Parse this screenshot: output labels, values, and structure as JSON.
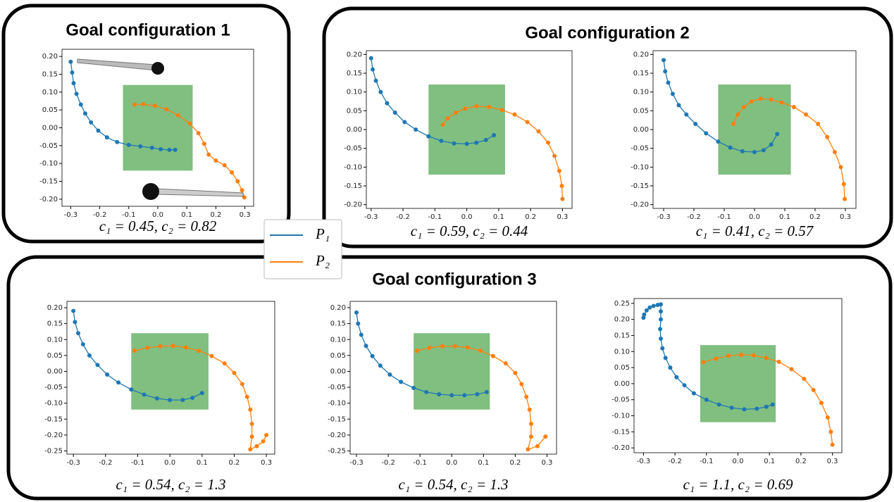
{
  "groups": [
    "Goal configuration 1",
    "Goal configuration 2",
    "Goal configuration 3"
  ],
  "legend": [
    {
      "name": "P₁",
      "color": "#1f77b4"
    },
    {
      "name": "P₂",
      "color": "#ff7f0e"
    }
  ],
  "chart_data": [
    {
      "type": "line",
      "caption": "c₁ = 0.45, c₂ = 0.82",
      "xlim": [
        -0.33,
        0.33
      ],
      "ylim": [
        -0.22,
        0.22
      ],
      "xticks": [
        -0.3,
        -0.2,
        -0.1,
        {
          "value": 0,
          "label": "0.0"
        },
        0.1,
        0.2,
        0.3
      ],
      "yticks": [
        {
          "value": 0.2,
          "label": "0.20"
        },
        0.15,
        {
          "value": 0.1,
          "label": "0.10"
        },
        0.05,
        {
          "value": 0,
          "label": "0.00"
        },
        -0.05,
        {
          "value": -0.1,
          "label": "-0.10"
        },
        -0.15,
        {
          "value": -0.2,
          "label": "-0.20"
        }
      ],
      "goal_region": {
        "x": [
          -0.12,
          0.12
        ],
        "y": [
          -0.12,
          0.12
        ],
        "color": "#80bf80"
      },
      "series": [
        {
          "color": "#1f77b4",
          "x": [
            -0.3,
            -0.295,
            -0.29,
            -0.28,
            -0.265,
            -0.25,
            -0.23,
            -0.205,
            -0.175,
            -0.14,
            -0.1,
            -0.06,
            -0.02,
            0.01,
            0.04,
            0.06
          ],
          "values": [
            0.185,
            0.155,
            0.125,
            0.095,
            0.065,
            0.04,
            0.015,
            -0.008,
            -0.027,
            -0.04,
            -0.048,
            -0.052,
            -0.056,
            -0.06,
            -0.062,
            -0.062
          ]
        },
        {
          "color": "#ff7f0e",
          "x": [
            -0.08,
            -0.05,
            -0.01,
            0.03,
            0.07,
            0.11,
            0.14,
            0.16,
            0.175,
            0.2,
            0.23,
            0.255,
            0.275,
            0.29,
            0.298
          ],
          "values": [
            0.065,
            0.066,
            0.062,
            0.052,
            0.035,
            0.012,
            -0.015,
            -0.045,
            -0.075,
            -0.092,
            -0.105,
            -0.125,
            -0.15,
            -0.175,
            -0.195
          ]
        }
      ]
    },
    {
      "type": "line",
      "caption": "c₁ = 0.59, c₂ = 0.44",
      "xlim": [
        -0.315,
        0.33
      ],
      "ylim": [
        -0.21,
        0.21
      ],
      "xticks": [
        -0.3,
        -0.2,
        -0.1,
        {
          "value": 0,
          "label": "0.0"
        },
        0.1,
        0.2,
        0.3
      ],
      "yticks": [
        {
          "value": 0.2,
          "label": "0.20"
        },
        0.15,
        {
          "value": 0.1,
          "label": "0.10"
        },
        0.05,
        {
          "value": 0,
          "label": "0.00"
        },
        -0.05,
        {
          "value": -0.1,
          "label": "-0.10"
        },
        -0.15,
        {
          "value": -0.2,
          "label": "-0.20"
        }
      ],
      "goal_region": {
        "x": [
          -0.12,
          0.12
        ],
        "y": [
          -0.12,
          0.12
        ],
        "color": "#80bf80"
      },
      "series": [
        {
          "color": "#1f77b4",
          "x": [
            -0.3,
            -0.295,
            -0.285,
            -0.27,
            -0.25,
            -0.225,
            -0.195,
            -0.16,
            -0.12,
            -0.08,
            -0.04,
            0,
            0.03,
            0.06,
            0.085
          ],
          "values": [
            0.19,
            0.16,
            0.13,
            0.1,
            0.07,
            0.045,
            0.02,
            0,
            -0.018,
            -0.03,
            -0.037,
            -0.038,
            -0.035,
            -0.028,
            -0.015
          ]
        },
        {
          "color": "#ff7f0e",
          "x": [
            -0.075,
            -0.06,
            -0.035,
            -0.005,
            0.03,
            0.07,
            0.11,
            0.15,
            0.19,
            0.225,
            0.255,
            0.275,
            0.29,
            0.298,
            0.3
          ],
          "values": [
            0.013,
            0.03,
            0.045,
            0.056,
            0.062,
            0.06,
            0.052,
            0.04,
            0.02,
            -0.005,
            -0.035,
            -0.07,
            -0.11,
            -0.15,
            -0.185
          ]
        }
      ]
    },
    {
      "type": "line",
      "caption": "c₁ = 0.41, c₂ = 0.57",
      "xlim": [
        -0.335,
        0.335
      ],
      "ylim": [
        -0.21,
        0.21
      ],
      "xticks": [
        -0.3,
        -0.2,
        -0.1,
        {
          "value": 0,
          "label": "0.0"
        },
        0.1,
        0.2,
        0.3
      ],
      "yticks": [
        {
          "value": 0.2,
          "label": "0.20"
        },
        0.15,
        {
          "value": 0.1,
          "label": "0.10"
        },
        0.05,
        {
          "value": 0,
          "label": "0.00"
        },
        -0.05,
        {
          "value": -0.1,
          "label": "-0.10"
        },
        -0.15,
        {
          "value": -0.2,
          "label": "-0.20"
        }
      ],
      "goal_region": {
        "x": [
          -0.12,
          0.12
        ],
        "y": [
          -0.12,
          0.12
        ],
        "color": "#80bf80"
      },
      "series": [
        {
          "color": "#1f77b4",
          "x": [
            -0.3,
            -0.295,
            -0.285,
            -0.27,
            -0.25,
            -0.225,
            -0.195,
            -0.16,
            -0.12,
            -0.08,
            -0.04,
            0,
            0.03,
            0.055,
            0.075
          ],
          "values": [
            0.185,
            0.155,
            0.125,
            0.095,
            0.065,
            0.04,
            0.015,
            -0.01,
            -0.032,
            -0.048,
            -0.058,
            -0.06,
            -0.055,
            -0.04,
            -0.012
          ]
        },
        {
          "color": "#ff7f0e",
          "x": [
            -0.07,
            -0.055,
            -0.035,
            -0.01,
            0.02,
            0.055,
            0.09,
            0.13,
            0.17,
            0.21,
            0.24,
            0.265,
            0.285,
            0.295,
            0.298
          ],
          "values": [
            0.015,
            0.04,
            0.06,
            0.075,
            0.082,
            0.08,
            0.072,
            0.06,
            0.04,
            0.015,
            -0.02,
            -0.06,
            -0.1,
            -0.145,
            -0.185
          ]
        }
      ]
    },
    {
      "type": "line",
      "caption": "c₁ = 0.54, c₂ = 1.3",
      "xlim": [
        -0.32,
        0.326
      ],
      "ylim": [
        -0.26,
        0.22
      ],
      "xticks": [
        -0.3,
        -0.2,
        -0.1,
        {
          "value": 0,
          "label": "0.0"
        },
        0.1,
        0.2,
        0.3
      ],
      "yticks": [
        {
          "value": 0.2,
          "label": "0.20"
        },
        0.15,
        {
          "value": 0.1,
          "label": "0.10"
        },
        0.05,
        {
          "value": 0,
          "label": "0.00"
        },
        -0.05,
        {
          "value": -0.1,
          "label": "-0.10"
        },
        -0.15,
        {
          "value": -0.2,
          "label": "-0.20"
        },
        -0.25
      ],
      "goal_region": {
        "x": [
          -0.12,
          0.12
        ],
        "y": [
          -0.12,
          0.12
        ],
        "color": "#80bf80"
      },
      "series": [
        {
          "color": "#1f77b4",
          "x": [
            -0.3,
            -0.295,
            -0.285,
            -0.27,
            -0.25,
            -0.225,
            -0.195,
            -0.16,
            -0.12,
            -0.08,
            -0.04,
            0,
            0.04,
            0.07,
            0.1
          ],
          "values": [
            0.19,
            0.155,
            0.12,
            0.085,
            0.05,
            0.02,
            -0.01,
            -0.035,
            -0.057,
            -0.073,
            -0.085,
            -0.09,
            -0.09,
            -0.083,
            -0.068
          ]
        },
        {
          "color": "#ff7f0e",
          "x": [
            -0.11,
            -0.07,
            -0.03,
            0.01,
            0.05,
            0.09,
            0.13,
            0.17,
            0.2,
            0.225,
            0.24,
            0.25,
            0.255,
            0.255,
            0.25,
            0.27,
            0.29,
            0.3
          ],
          "values": [
            0.065,
            0.074,
            0.079,
            0.08,
            0.075,
            0.065,
            0.048,
            0.025,
            -0.005,
            -0.04,
            -0.08,
            -0.12,
            -0.165,
            -0.205,
            -0.245,
            -0.235,
            -0.22,
            -0.2
          ]
        }
      ]
    },
    {
      "type": "line",
      "caption": "c₁ = 0.54, c₂ = 1.3",
      "xlim": [
        -0.32,
        0.33
      ],
      "ylim": [
        -0.26,
        0.22
      ],
      "xticks": [
        -0.3,
        -0.2,
        -0.1,
        {
          "value": 0,
          "label": "0.0"
        },
        0.1,
        0.2,
        0.3
      ],
      "yticks": [
        {
          "value": 0.2,
          "label": "0.20"
        },
        0.15,
        {
          "value": 0.1,
          "label": "0.10"
        },
        0.05,
        {
          "value": 0,
          "label": "0.00"
        },
        -0.05,
        {
          "value": -0.1,
          "label": "-0.10"
        },
        -0.15,
        {
          "value": -0.2,
          "label": "-0.20"
        },
        -0.25
      ],
      "goal_region": {
        "x": [
          -0.12,
          0.12
        ],
        "y": [
          -0.12,
          0.12
        ],
        "color": "#80bf80"
      },
      "series": [
        {
          "color": "#1f77b4",
          "x": [
            -0.3,
            -0.295,
            -0.285,
            -0.27,
            -0.25,
            -0.225,
            -0.195,
            -0.16,
            -0.12,
            -0.08,
            -0.04,
            0,
            0.04,
            0.08,
            0.11
          ],
          "values": [
            0.185,
            0.15,
            0.115,
            0.08,
            0.048,
            0.018,
            -0.01,
            -0.033,
            -0.052,
            -0.065,
            -0.072,
            -0.075,
            -0.075,
            -0.072,
            -0.065
          ]
        },
        {
          "color": "#ff7f0e",
          "x": [
            -0.11,
            -0.07,
            -0.03,
            0.01,
            0.05,
            0.09,
            0.13,
            0.17,
            0.2,
            0.22,
            0.235,
            0.245,
            0.25,
            0.25,
            0.24,
            0.27,
            0.295
          ],
          "values": [
            0.065,
            0.074,
            0.079,
            0.079,
            0.075,
            0.065,
            0.048,
            0.025,
            -0.005,
            -0.04,
            -0.08,
            -0.12,
            -0.165,
            -0.205,
            -0.245,
            -0.235,
            -0.205
          ]
        }
      ]
    },
    {
      "type": "line",
      "caption": "c₁ = 1.1, c₂ = 0.69",
      "xlim": [
        -0.33,
        0.33
      ],
      "ylim": [
        -0.215,
        0.265
      ],
      "xticks": [
        -0.3,
        -0.2,
        -0.1,
        {
          "value": 0,
          "label": "0.0"
        },
        0.1,
        0.2,
        0.3
      ],
      "yticks": [
        0.25,
        {
          "value": 0.2,
          "label": "0.20"
        },
        0.15,
        {
          "value": 0.1,
          "label": "0.10"
        },
        0.05,
        {
          "value": 0,
          "label": "0.00"
        },
        -0.05,
        {
          "value": -0.1,
          "label": "-0.10"
        },
        -0.15,
        {
          "value": -0.2,
          "label": "-0.20"
        }
      ],
      "goal_region": {
        "x": [
          -0.12,
          0.12
        ],
        "y": [
          -0.12,
          0.12
        ],
        "color": "#80bf80"
      },
      "series": [
        {
          "color": "#1f77b4",
          "x": [
            -0.3,
            -0.298,
            -0.29,
            -0.28,
            -0.268,
            -0.255,
            -0.245,
            -0.245,
            -0.245,
            -0.247,
            -0.245,
            -0.24,
            -0.23,
            -0.215,
            -0.195,
            -0.17,
            -0.14,
            -0.1,
            -0.06,
            -0.02,
            0.02,
            0.06,
            0.09,
            0.11
          ],
          "values": [
            0.205,
            0.215,
            0.228,
            0.237,
            0.242,
            0.245,
            0.247,
            0.225,
            0.2,
            0.17,
            0.14,
            0.11,
            0.08,
            0.05,
            0.02,
            -0.005,
            -0.03,
            -0.05,
            -0.065,
            -0.075,
            -0.08,
            -0.078,
            -0.072,
            -0.065
          ]
        },
        {
          "color": "#ff7f0e",
          "x": [
            -0.11,
            -0.07,
            -0.03,
            0.01,
            0.05,
            0.09,
            0.13,
            0.17,
            0.21,
            0.24,
            0.265,
            0.285,
            0.295,
            0.3
          ],
          "values": [
            0.067,
            0.078,
            0.087,
            0.09,
            0.088,
            0.08,
            0.068,
            0.045,
            0.015,
            -0.02,
            -0.06,
            -0.105,
            -0.15,
            -0.19
          ]
        }
      ]
    }
  ]
}
